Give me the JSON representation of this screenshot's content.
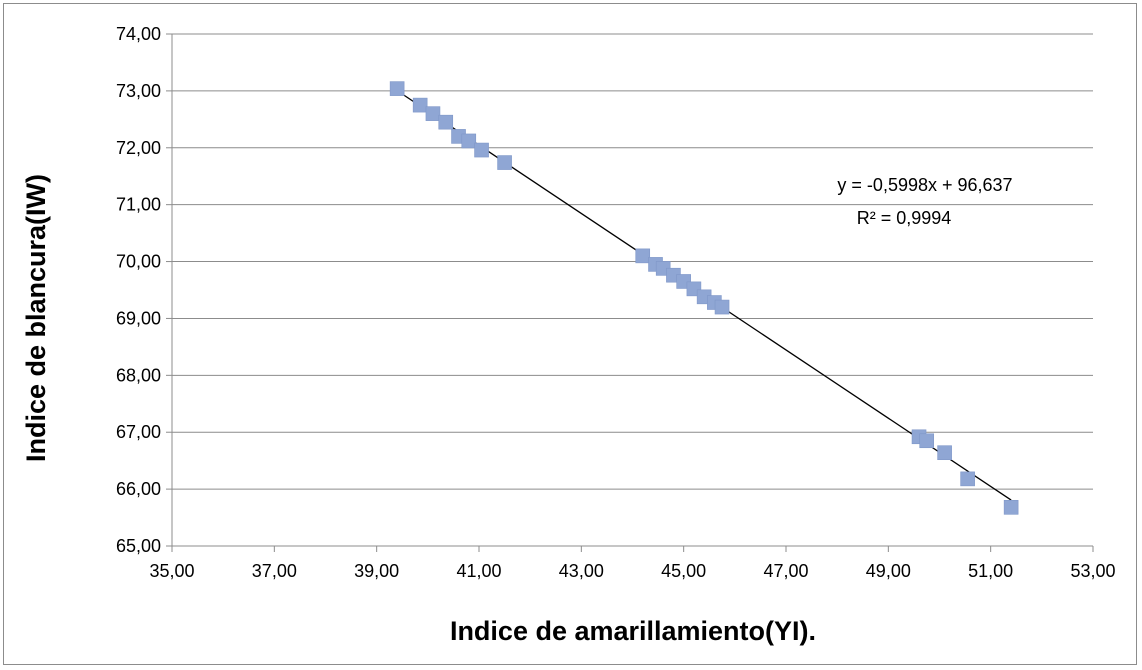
{
  "chart_data": {
    "type": "scatter",
    "xlabel": "Indice de amarillamiento(YI).",
    "ylabel": "Indice de blancura(IW)",
    "xlim": [
      35,
      53
    ],
    "ylim": [
      65,
      74
    ],
    "x_ticks": [
      "35,00",
      "37,00",
      "39,00",
      "41,00",
      "43,00",
      "45,00",
      "47,00",
      "49,00",
      "51,00",
      "53,00"
    ],
    "y_ticks": [
      "65,00",
      "66,00",
      "67,00",
      "68,00",
      "69,00",
      "70,00",
      "71,00",
      "72,00",
      "73,00",
      "74,00"
    ],
    "grid": "horizontal",
    "marker": "square",
    "marker_color": "#8FA6D4",
    "trendline_color": "#000000",
    "points": [
      {
        "x": 39.4,
        "y": 73.04
      },
      {
        "x": 39.85,
        "y": 72.75
      },
      {
        "x": 40.1,
        "y": 72.6
      },
      {
        "x": 40.35,
        "y": 72.45
      },
      {
        "x": 40.6,
        "y": 72.2
      },
      {
        "x": 40.8,
        "y": 72.12
      },
      {
        "x": 41.05,
        "y": 71.96
      },
      {
        "x": 41.5,
        "y": 71.74
      },
      {
        "x": 44.2,
        "y": 70.1
      },
      {
        "x": 44.45,
        "y": 69.95
      },
      {
        "x": 44.6,
        "y": 69.88
      },
      {
        "x": 44.8,
        "y": 69.76
      },
      {
        "x": 45.0,
        "y": 69.65
      },
      {
        "x": 45.2,
        "y": 69.52
      },
      {
        "x": 45.4,
        "y": 69.38
      },
      {
        "x": 45.6,
        "y": 69.28
      },
      {
        "x": 45.75,
        "y": 69.2
      },
      {
        "x": 49.6,
        "y": 66.92
      },
      {
        "x": 49.75,
        "y": 66.85
      },
      {
        "x": 50.1,
        "y": 66.64
      },
      {
        "x": 50.55,
        "y": 66.18
      },
      {
        "x": 51.4,
        "y": 65.68
      }
    ],
    "trendline": {
      "slope": -0.5998,
      "intercept": 96.637,
      "x_range": [
        39.4,
        51.4
      ],
      "equation": "y = -0,5998x + 96,637",
      "r_squared": "R² = 0,9994"
    }
  }
}
